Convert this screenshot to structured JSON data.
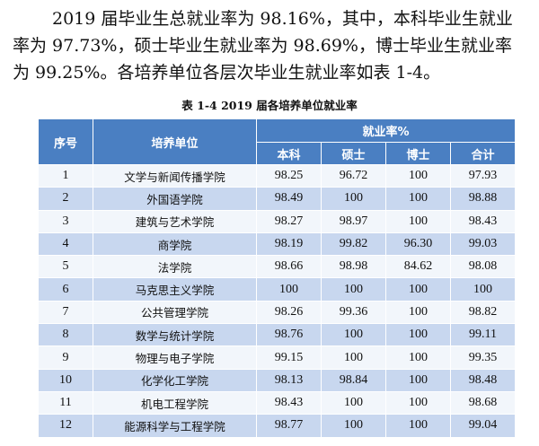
{
  "paragraph": {
    "line1": "2019 届毕业生总就业率为 98.16%，其中，本科毕业生就业",
    "line2": "率为 97.73%，硕士毕业生就业率为 98.69%，博士毕业生就业率",
    "line3": "为 99.25%。各培养单位各层次毕业生就业率如表 1-4。"
  },
  "table": {
    "caption": "表 1-4   2019 届各培养单位就业率",
    "headers": {
      "index": "序号",
      "unit": "培养单位",
      "rate_group": "就业率%",
      "bachelor": "本科",
      "master": "硕士",
      "doctor": "博士",
      "total": "合计"
    },
    "rows": [
      {
        "idx": "1",
        "unit": "文学与新闻传播学院",
        "bachelor": "98.25",
        "master": "96.72",
        "doctor": "100",
        "total": "97.93"
      },
      {
        "idx": "2",
        "unit": "外国语学院",
        "bachelor": "98.49",
        "master": "100",
        "doctor": "100",
        "total": "98.88"
      },
      {
        "idx": "3",
        "unit": "建筑与艺术学院",
        "bachelor": "98.27",
        "master": "98.97",
        "doctor": "100",
        "total": "98.43"
      },
      {
        "idx": "4",
        "unit": "商学院",
        "bachelor": "98.19",
        "master": "99.82",
        "doctor": "96.30",
        "total": "99.03"
      },
      {
        "idx": "5",
        "unit": "法学院",
        "bachelor": "98.66",
        "master": "98.98",
        "doctor": "84.62",
        "total": "98.08"
      },
      {
        "idx": "6",
        "unit": "马克思主义学院",
        "bachelor": "100",
        "master": "100",
        "doctor": "100",
        "total": "100"
      },
      {
        "idx": "7",
        "unit": "公共管理学院",
        "bachelor": "98.26",
        "master": "99.36",
        "doctor": "100",
        "total": "98.82"
      },
      {
        "idx": "8",
        "unit": "数学与统计学院",
        "bachelor": "98.76",
        "master": "100",
        "doctor": "100",
        "total": "99.11"
      },
      {
        "idx": "9",
        "unit": "物理与电子学院",
        "bachelor": "99.15",
        "master": "100",
        "doctor": "100",
        "total": "99.35"
      },
      {
        "idx": "10",
        "unit": "化学化工学院",
        "bachelor": "98.13",
        "master": "98.84",
        "doctor": "100",
        "total": "98.48"
      },
      {
        "idx": "11",
        "unit": "机电工程学院",
        "bachelor": "98.43",
        "master": "100",
        "doctor": "100",
        "total": "98.68"
      },
      {
        "idx": "12",
        "unit": "能源科学与工程学院",
        "bachelor": "98.77",
        "master": "100",
        "doctor": "100",
        "total": "99.04"
      }
    ]
  }
}
